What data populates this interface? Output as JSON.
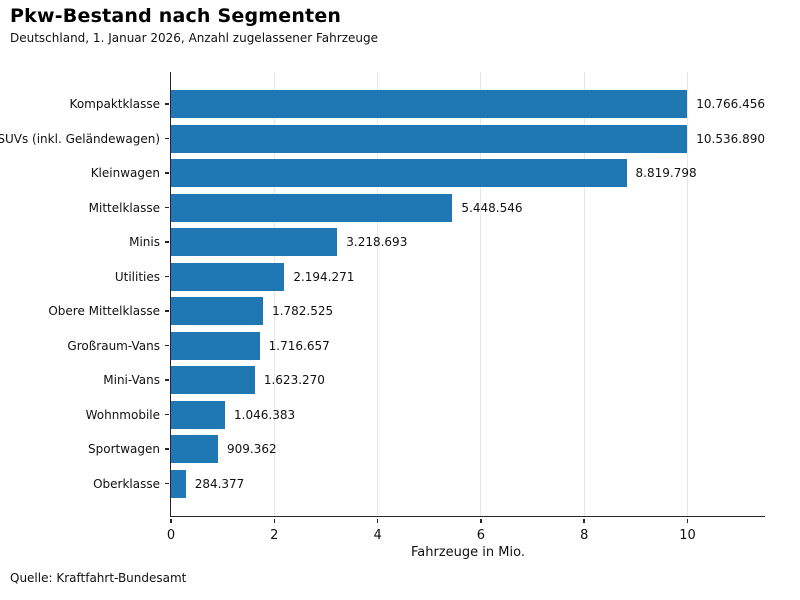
{
  "header": {
    "title": "Pkw-Bestand nach Segmenten",
    "subtitle": "Deutschland, 1. Januar 2026, Anzahl zugelassener Fahrzeuge"
  },
  "footer": {
    "source": "Quelle: Kraftfahrt-Bundesamt"
  },
  "chart_data": {
    "type": "bar",
    "orientation": "horizontal",
    "title": "Pkw-Bestand nach Segmenten",
    "subtitle": "Deutschland, 1. Januar 2026, Anzahl zugelassener Fahrzeuge",
    "categories": [
      "Kompaktklasse",
      "SUVs (inkl. Geländewagen)",
      "Kleinwagen",
      "Mittelklasse",
      "Minis",
      "Utilities",
      "Obere Mittelklasse",
      "Großraum-Vans",
      "Mini-Vans",
      "Wohnmobile",
      "Sportwagen",
      "Oberklasse"
    ],
    "values": [
      10766456,
      10536890,
      8819798,
      5448546,
      3218693,
      2194271,
      1782525,
      1716657,
      1623270,
      1046383,
      909362,
      284377
    ],
    "value_labels": [
      "10.766.456",
      "10.536.890",
      "8.819.798",
      "5.448.546",
      "3.218.693",
      "2.194.271",
      "1.782.525",
      "1.716.657",
      "1.623.270",
      "1.046.383",
      "909.362",
      "284.377"
    ],
    "xlabel": "Fahrzeuge in Mio.",
    "xlim": [
      0,
      11.5
    ],
    "xticks": [
      0,
      2,
      4,
      6,
      8,
      10
    ],
    "unit_divisor": 1000000,
    "bar_color": "#1f77b4",
    "grid": "vertical",
    "legend": "none",
    "source": "Quelle: Kraftfahrt-Bundesamt"
  }
}
